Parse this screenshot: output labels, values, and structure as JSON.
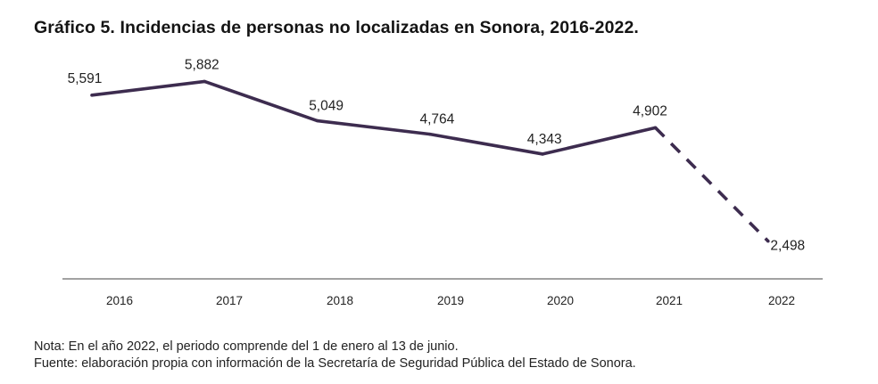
{
  "title": "Gráfico 5. Incidencias de personas no localizadas en Sonora, 2016-2022.",
  "chart_data": {
    "type": "line",
    "title": "Gráfico 5. Incidencias de personas no localizadas en Sonora, 2016-2022.",
    "categories": [
      "2016",
      "2017",
      "2018",
      "2019",
      "2020",
      "2021",
      "2022"
    ],
    "values": [
      5591,
      5882,
      5049,
      4764,
      4343,
      4902,
      2498
    ],
    "data_labels": [
      "5,591",
      "5,882",
      "5,049",
      "4,764",
      "4,343",
      "4,902",
      "2,498"
    ],
    "dashed_segment": [
      "2021",
      "2022"
    ],
    "ylim": [
      2000,
      6400
    ],
    "grid": false,
    "line_color": "#3d2c4f",
    "axis_color": "#6b6b6b",
    "xlabel": "",
    "ylabel": ""
  },
  "notes": {
    "nota": "Nota: En el año 2022, el periodo comprende del 1 de enero al 13 de junio.",
    "fuente": "Fuente: elaboración propia con información de la Secretaría de Seguridad Pública del Estado de Sonora."
  }
}
